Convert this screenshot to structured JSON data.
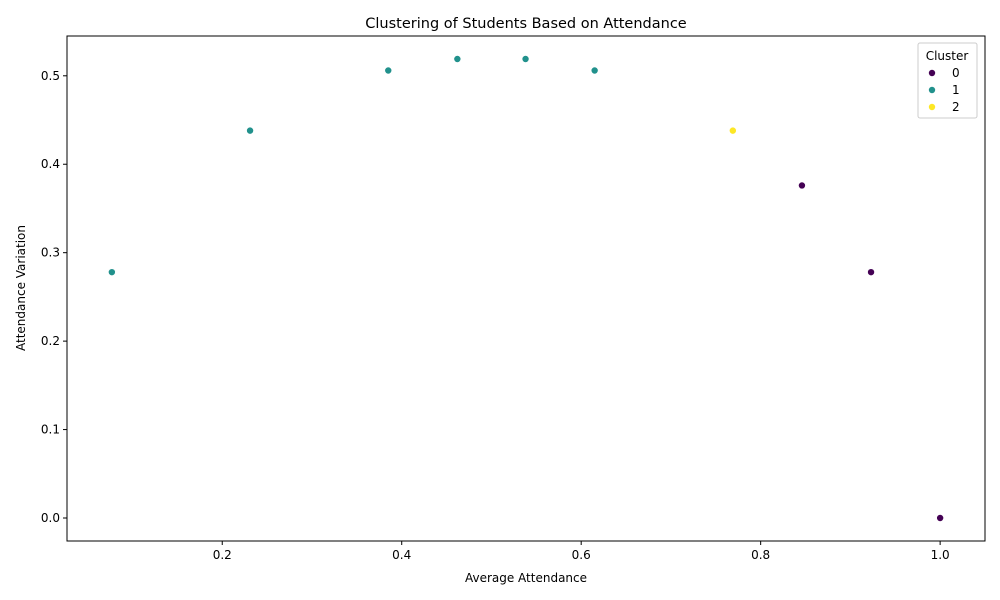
{
  "chart_data": {
    "type": "scatter",
    "title": "Clustering of Students Based on Attendance",
    "xlabel": "Average Attendance",
    "ylabel": "Attendance Variation",
    "xlim": [
      0.027,
      1.05
    ],
    "ylim": [
      -0.026,
      0.545
    ],
    "xticks": [
      0.2,
      0.4,
      0.6,
      0.8,
      1.0
    ],
    "yticks": [
      0.0,
      0.1,
      0.2,
      0.3,
      0.4,
      0.5
    ],
    "xtick_labels": [
      "0.2",
      "0.4",
      "0.6",
      "0.8",
      "1.0"
    ],
    "ytick_labels": [
      "0.0",
      "0.1",
      "0.2",
      "0.3",
      "0.4",
      "0.5"
    ],
    "grid": false,
    "legend": {
      "title": "Cluster",
      "placement": "top-right",
      "entries": [
        {
          "label": "0",
          "color": "#440154"
        },
        {
          "label": "1",
          "color": "#21918c"
        },
        {
          "label": "2",
          "color": "#fde725"
        }
      ]
    },
    "points": [
      {
        "x": 0.077,
        "y": 0.278,
        "cluster": 1
      },
      {
        "x": 0.231,
        "y": 0.438,
        "cluster": 1
      },
      {
        "x": 0.385,
        "y": 0.506,
        "cluster": 1
      },
      {
        "x": 0.462,
        "y": 0.519,
        "cluster": 1
      },
      {
        "x": 0.538,
        "y": 0.519,
        "cluster": 1
      },
      {
        "x": 0.615,
        "y": 0.506,
        "cluster": 1
      },
      {
        "x": 0.769,
        "y": 0.438,
        "cluster": 2
      },
      {
        "x": 0.846,
        "y": 0.376,
        "cluster": 0
      },
      {
        "x": 0.923,
        "y": 0.278,
        "cluster": 0
      },
      {
        "x": 1.0,
        "y": 0.0,
        "cluster": 0
      }
    ]
  }
}
